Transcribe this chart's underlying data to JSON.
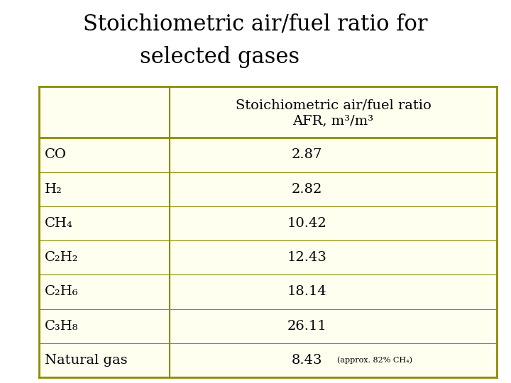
{
  "title_line1": "Stoichiometric air/fuel ratio for",
  "title_line2": "selected gases",
  "title_fontsize": 22,
  "background_color": "#ffffff",
  "table_bg": "#fffff0",
  "table_border": "#8B8B00",
  "header_text_line1": "Stoichiometric air/fuel ratio",
  "header_text_line2": "AFR, m³/m³",
  "fuels": [
    "CO",
    "H₂",
    "CH₄",
    "C₂H₂",
    "C₂H₆",
    "C₃H₈",
    "Natural gas"
  ],
  "values": [
    "2.87",
    "2.82",
    "10.42",
    "12.43",
    "18.14",
    "26.11",
    "8.43"
  ],
  "note": "(approx. 82% CH₄)",
  "text_color": "#000000",
  "data_fontsize": 14,
  "header_fontsize": 14,
  "note_fontsize": 8
}
